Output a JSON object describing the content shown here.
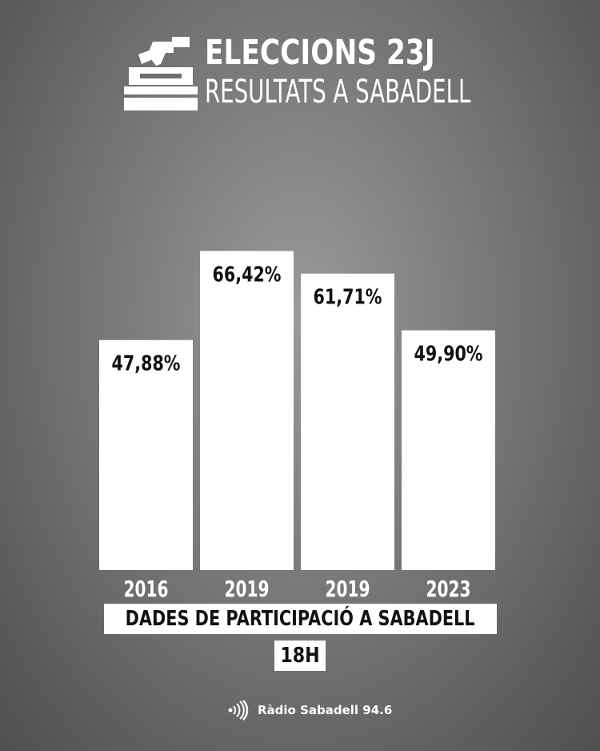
{
  "header": {
    "title": "ELECCIONS 23J",
    "subtitle": "RESULTATS A SABADELL",
    "icon": "ballot-box-icon"
  },
  "chart_data": {
    "type": "bar",
    "title": "DADES DE PARTICIPACIÓ A SABADELL",
    "categories": [
      "2016",
      "2019",
      "2019",
      "2023"
    ],
    "values": [
      47.88,
      66.42,
      61.71,
      49.9
    ],
    "value_labels": [
      "47,88%",
      "66,42%",
      "61,71%",
      "49,90%"
    ],
    "ylim": [
      0,
      100
    ],
    "grid": false,
    "bar_color": "#ffffff",
    "label_color": "#111111"
  },
  "caption": {
    "title": "DADES DE PARTICIPACIÓ A SABADELL",
    "time": "18H"
  },
  "footer": {
    "brand": "Ràdio Sabadell 94.6",
    "icon": "radio-waves-icon"
  },
  "colors": {
    "background": "#7c7c7c",
    "text_light": "#ffffff",
    "text_dark": "#111111"
  }
}
